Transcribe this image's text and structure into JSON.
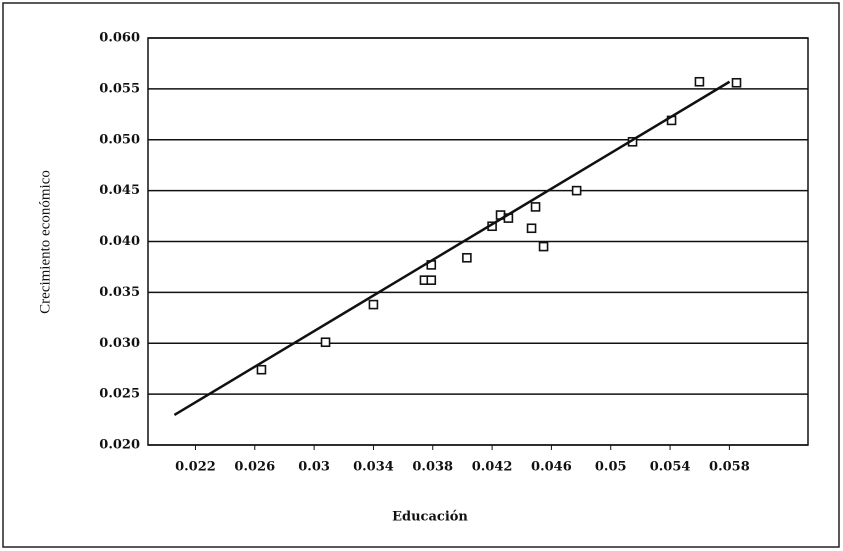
{
  "chart_data": {
    "type": "scatter",
    "xlabel": "Educación",
    "ylabel": "Crecimiento económico",
    "xlim": [
      0.0188,
      0.0633
    ],
    "ylim": [
      0.02,
      0.06
    ],
    "xticks": [
      0.022,
      0.026,
      0.03,
      0.034,
      0.038,
      0.042,
      0.046,
      0.05,
      0.054,
      0.058
    ],
    "yticks": [
      {
        "value": 0.02,
        "label": "0.020"
      },
      0.025,
      {
        "value": 0.03,
        "label": "0.030"
      },
      0.035,
      {
        "value": 0.04,
        "label": "0.040"
      },
      0.045,
      {
        "value": 0.05,
        "label": "0.050"
      },
      0.055,
      {
        "value": 0.06,
        "label": "0.060"
      }
    ],
    "grid": true,
    "color": "#111111",
    "x": [
      0.02645,
      0.03077,
      0.034,
      0.03744,
      0.0379,
      0.0379,
      0.0403,
      0.042,
      0.04257,
      0.0431,
      0.04466,
      0.04493,
      0.04547,
      0.0477,
      0.05147,
      0.0541,
      0.05598,
      0.05848
    ],
    "y": [
      0.0274,
      0.0301,
      0.0338,
      0.0362,
      0.0362,
      0.0377,
      0.0384,
      0.0415,
      0.0426,
      0.0423,
      0.0413,
      0.0434,
      0.0395,
      0.045,
      0.0498,
      0.0519,
      0.0557,
      0.0556
    ],
    "trendline": {
      "x": [
        0.02058,
        0.05801
      ],
      "y": [
        0.02295,
        0.0557
      ]
    }
  }
}
